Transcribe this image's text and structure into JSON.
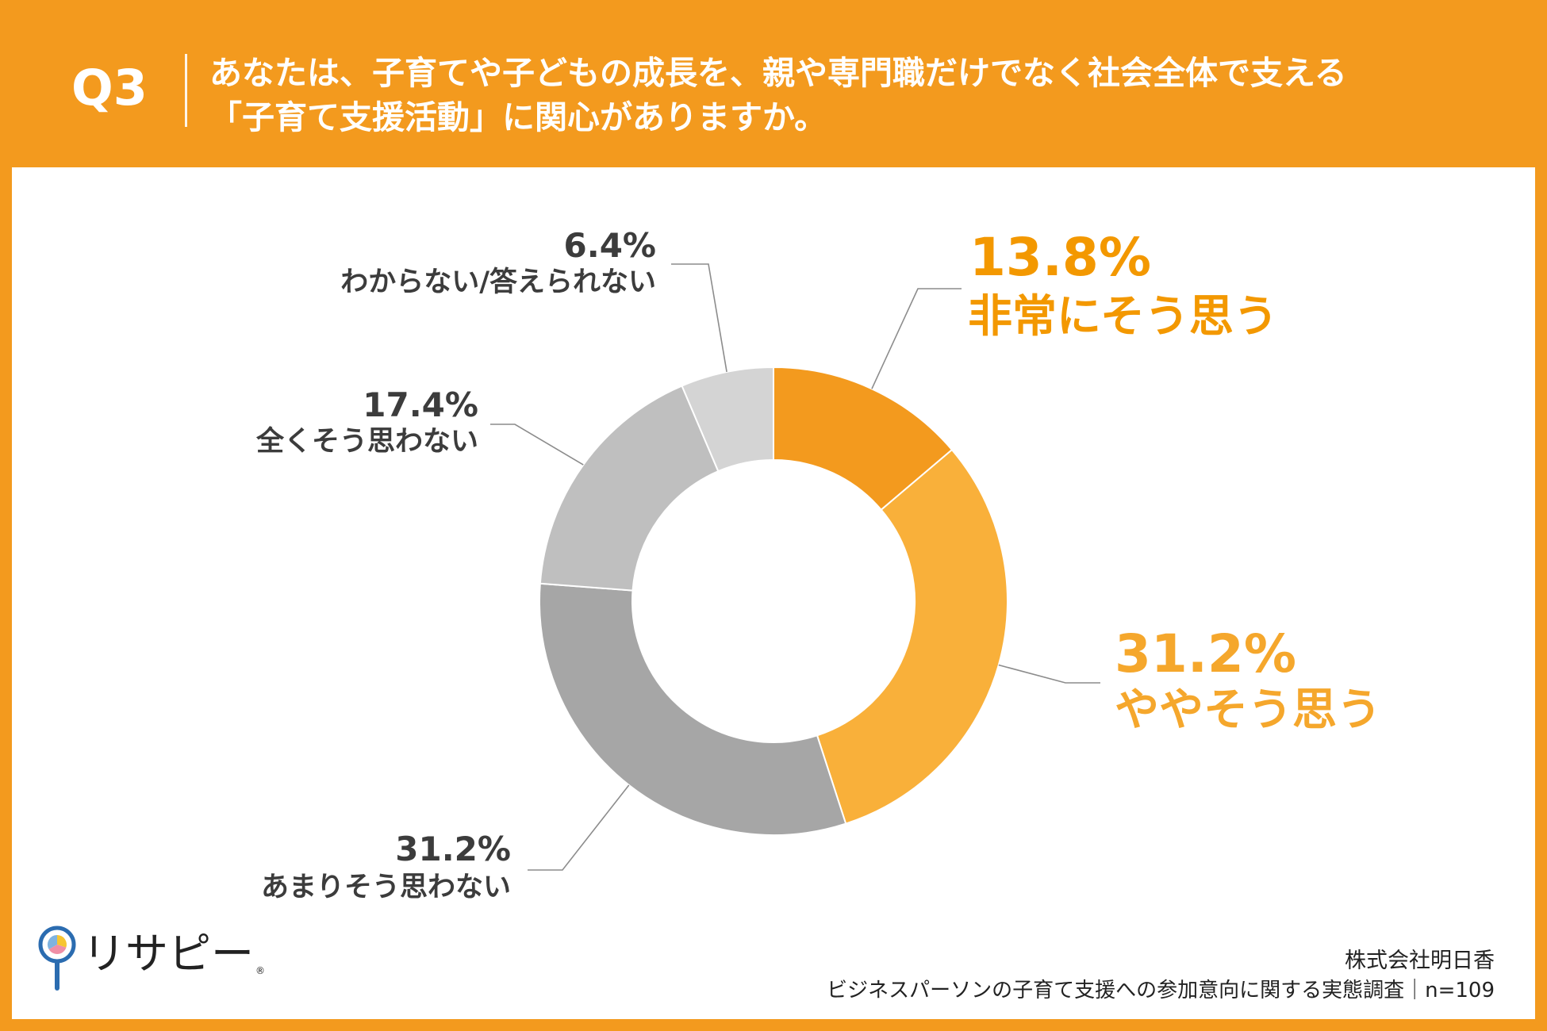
{
  "header": {
    "q_label": "Q3",
    "question_lines": [
      "あなたは、子育てや子どもの成長を、親や専門職だけでなく社会全体で支える",
      "「子育て支援活動」に関心がありますか。"
    ]
  },
  "chart_data": {
    "type": "pie",
    "donut": true,
    "start": "top",
    "direction": "clockwise",
    "legend": "none",
    "unit": "%",
    "categories": [
      "非常にそう思う",
      "ややそう思う",
      "あまりそう思わない",
      "全くそう思わない",
      "わからない/答えられない"
    ],
    "values": [
      13.8,
      31.2,
      31.2,
      17.4,
      6.4
    ],
    "value_labels": [
      "13.8%",
      "31.2%",
      "31.2%",
      "17.4%",
      "6.4%"
    ],
    "colors": [
      "#F39A1E",
      "#F9B03A",
      "#A6A6A6",
      "#BFBFBF",
      "#D4D4D4"
    ]
  },
  "logo": {
    "brand": "リサピー",
    "mark": "®",
    "icon": "pin-pie-icon"
  },
  "footer": {
    "company": "株式会社明日香",
    "survey": "ビジネスパーソンの子育て支援への参加意向に関する実態調査｜n=109"
  },
  "theme": {
    "background": "#F39A1E",
    "panel": "#FFFFFF",
    "accent": "#F39800",
    "accent_light": "#F5A72C",
    "text_dark": "#3C3C3C",
    "logo_blue": "#2B6CB0"
  }
}
